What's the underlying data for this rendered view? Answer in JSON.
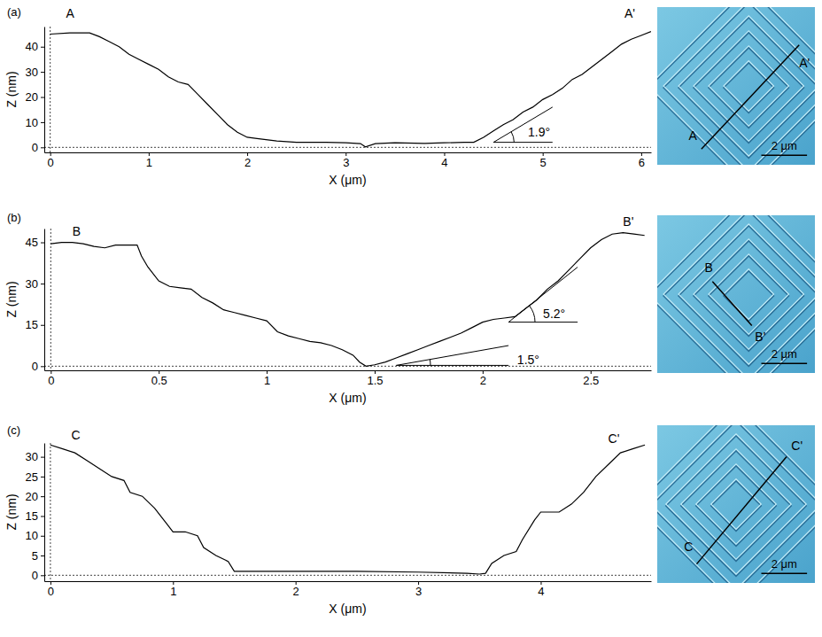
{
  "chart_data": [
    {
      "type": "line",
      "panel": "(a)",
      "x_label": "X (μm)",
      "y_label": "Z (nm)",
      "color": "#000000",
      "xlim": [
        -0.06,
        6.1
      ],
      "xticks": [
        0,
        1,
        2,
        3,
        4,
        5,
        6
      ],
      "ylim": [
        -2,
        48
      ],
      "yticks": [
        0,
        10,
        20,
        30,
        40
      ],
      "x": [
        0,
        0.2,
        0.4,
        0.5,
        0.6,
        0.7,
        0.8,
        0.9,
        1.0,
        1.1,
        1.2,
        1.3,
        1.4,
        1.5,
        1.6,
        1.7,
        1.8,
        1.9,
        2.0,
        2.1,
        2.3,
        2.5,
        2.8,
        3.0,
        3.15,
        3.2,
        3.3,
        3.5,
        3.8,
        4.0,
        4.2,
        4.3,
        4.4,
        4.5,
        4.6,
        4.7,
        4.8,
        4.9,
        5.0,
        5.1,
        5.2,
        5.3,
        5.4,
        5.5,
        5.6,
        5.7,
        5.8,
        5.9,
        6.0,
        6.1
      ],
      "values": [
        45,
        45.5,
        45.5,
        44,
        42,
        40,
        37,
        35,
        33,
        31,
        28,
        26,
        25,
        21,
        17,
        13,
        9,
        6,
        4,
        3.5,
        2.5,
        2,
        2,
        1.8,
        1.5,
        0.2,
        1.5,
        1.8,
        1.6,
        1.8,
        2,
        2,
        4,
        6.5,
        9,
        11,
        14,
        16,
        19,
        21,
        23.5,
        27,
        29,
        32,
        35,
        38,
        41,
        43,
        44.5,
        46
      ],
      "annotations": [
        {
          "text": "A",
          "x": 0.16,
          "y": 51.5
        },
        {
          "text": "A'",
          "x": 5.83,
          "y": 51.5
        },
        {
          "text": "1.9°",
          "x": 4.85,
          "y": 4.4,
          "x0": 4.5,
          "y0": 2,
          "x1": 5.1,
          "y1": 16
        }
      ]
    },
    {
      "type": "line",
      "panel": "(b)",
      "x_label": "X (μm)",
      "y_label": "Z (nm)",
      "color": "#000000",
      "xlim": [
        -0.03,
        2.78
      ],
      "xticks": [
        0,
        0.5,
        1,
        1.5,
        2,
        2.5
      ],
      "ylim": [
        -1.5,
        50
      ],
      "yticks": [
        0,
        15,
        30,
        45
      ],
      "x": [
        0,
        0.05,
        0.1,
        0.15,
        0.2,
        0.25,
        0.3,
        0.35,
        0.4,
        0.42,
        0.45,
        0.5,
        0.55,
        0.6,
        0.65,
        0.7,
        0.75,
        0.8,
        0.85,
        0.9,
        0.95,
        1.0,
        1.05,
        1.1,
        1.15,
        1.2,
        1.25,
        1.3,
        1.35,
        1.4,
        1.43,
        1.46,
        1.5,
        1.55,
        1.6,
        1.65,
        1.7,
        1.75,
        1.8,
        1.85,
        1.9,
        1.95,
        2.0,
        2.05,
        2.1,
        2.15,
        2.2,
        2.25,
        2.3,
        2.35,
        2.4,
        2.45,
        2.5,
        2.55,
        2.6,
        2.65,
        2.7,
        2.75
      ],
      "values": [
        44.5,
        45,
        45,
        44.5,
        43.5,
        43,
        44,
        44,
        44,
        40,
        36,
        31,
        29,
        28.5,
        28,
        25,
        23,
        20.5,
        19.5,
        18.5,
        17.5,
        16.5,
        12.5,
        11,
        10,
        9,
        8.5,
        7.5,
        6,
        4,
        1.5,
        0,
        0.5,
        1.5,
        3,
        4.5,
        6,
        7.5,
        9,
        10.5,
        12,
        14,
        16,
        17,
        17.5,
        18,
        21,
        24,
        28,
        31,
        35,
        39,
        43,
        46,
        48,
        48.5,
        48,
        47.5
      ],
      "annotations": [
        {
          "text": "B",
          "x": 0.1,
          "y": 47.5
        },
        {
          "text": "B'",
          "x": 2.65,
          "y": 51
        },
        {
          "text": "1.5°",
          "x": 2.16,
          "y": 0.8,
          "x0": 1.6,
          "y0": 0.3,
          "x1": 2.12,
          "y1": 7.5
        },
        {
          "text": "5.2°",
          "x": 2.28,
          "y": 17.5,
          "x0": 2.12,
          "y0": 16,
          "x1": 2.44,
          "y1": 36
        }
      ]
    },
    {
      "type": "line",
      "panel": "(c)",
      "x_label": "X (μm)",
      "y_label": "Z (nm)",
      "color": "#000000",
      "xlim": [
        -0.05,
        4.9
      ],
      "xticks": [
        0,
        1,
        2,
        3,
        4
      ],
      "ylim": [
        -1.5,
        33.5
      ],
      "yticks": [
        0,
        5,
        10,
        15,
        20,
        25,
        30
      ],
      "x": [
        0,
        0.1,
        0.2,
        0.3,
        0.4,
        0.5,
        0.6,
        0.65,
        0.75,
        0.85,
        0.95,
        1.0,
        1.1,
        1.2,
        1.25,
        1.35,
        1.45,
        1.5,
        1.6,
        2.0,
        2.5,
        3.0,
        3.4,
        3.5,
        3.55,
        3.6,
        3.7,
        3.8,
        3.85,
        3.95,
        4.0,
        4.15,
        4.25,
        4.35,
        4.45,
        4.55,
        4.65,
        4.75,
        4.85
      ],
      "values": [
        33,
        32,
        31,
        29,
        27,
        25,
        24,
        21,
        20,
        17,
        13,
        11,
        11,
        10,
        7,
        5,
        3.5,
        1,
        1,
        1,
        1,
        0.8,
        0.5,
        0.3,
        0.5,
        3,
        5,
        6,
        9,
        14,
        16,
        16,
        18,
        21,
        25,
        28,
        31,
        32,
        33
      ],
      "annotations": [
        {
          "text": "C",
          "x": 0.17,
          "y": 34.5
        },
        {
          "text": "C'",
          "x": 4.55,
          "y": 33.5
        }
      ]
    }
  ],
  "images": [
    {
      "start_label": "A",
      "end_label": "A'",
      "scale_bar": "2 μm"
    },
    {
      "start_label": "B",
      "end_label": "B'",
      "scale_bar": "2 μm"
    },
    {
      "start_label": "C",
      "end_label": "C'",
      "scale_bar": "2 μm"
    }
  ]
}
